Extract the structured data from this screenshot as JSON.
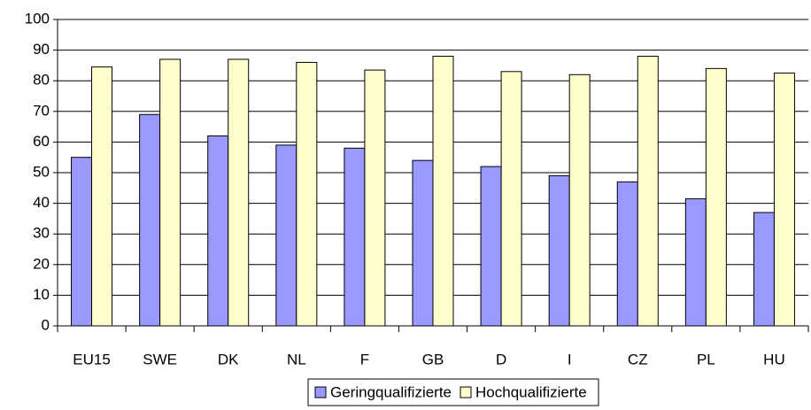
{
  "chart_data": {
    "type": "bar",
    "categories": [
      "EU15",
      "SWE",
      "DK",
      "NL",
      "F",
      "GB",
      "D",
      "I",
      "CZ",
      "PL",
      "HU"
    ],
    "series": [
      {
        "name": "Geringqualifizierte",
        "color": "#9999ff",
        "values": [
          55,
          69,
          62,
          59,
          58,
          54,
          52,
          49,
          47,
          41.5,
          37
        ]
      },
      {
        "name": "Hochqualifizierte",
        "color": "#ffffcc",
        "values": [
          84.5,
          87,
          87,
          86,
          83.5,
          88,
          83,
          82,
          88,
          84,
          82.5
        ]
      }
    ],
    "ylim": [
      0,
      100
    ],
    "yticks": [
      0,
      10,
      20,
      30,
      40,
      50,
      60,
      70,
      80,
      90,
      100
    ],
    "grid": true,
    "legend": "bottom"
  }
}
